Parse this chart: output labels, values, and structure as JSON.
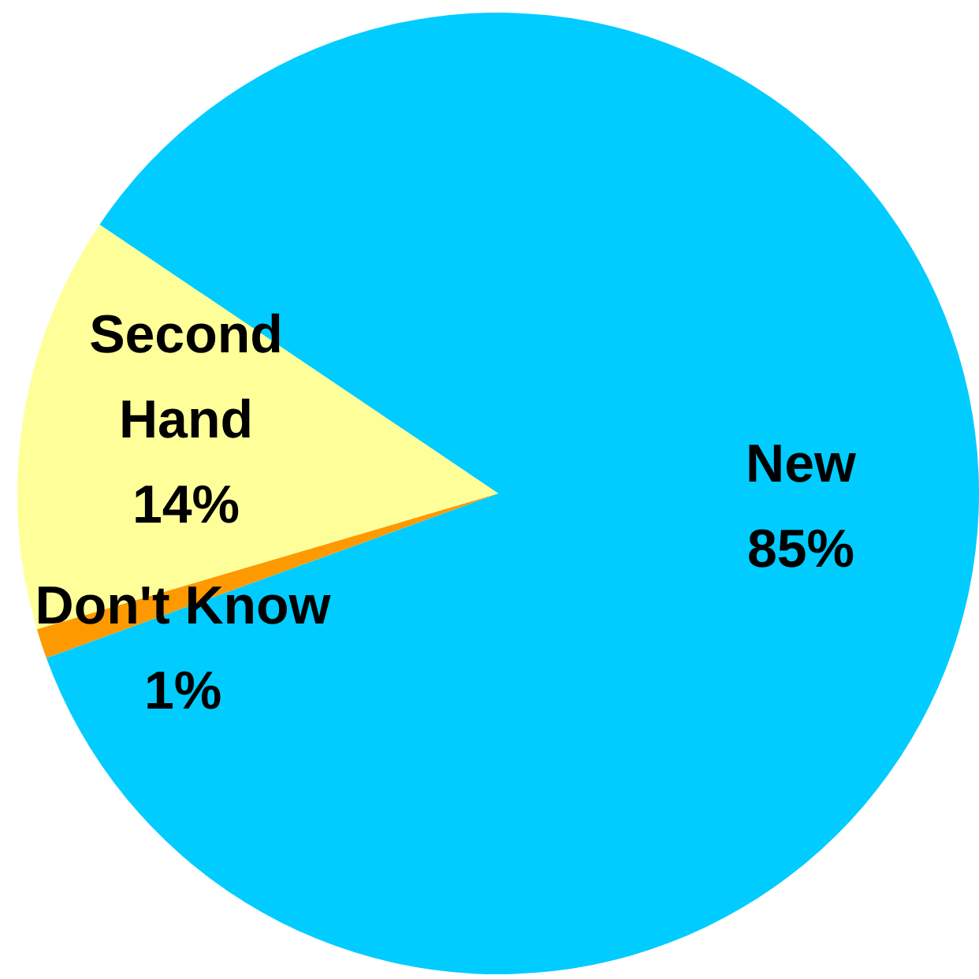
{
  "chart_data": {
    "type": "pie",
    "categories": [
      "New",
      "Don't Know",
      "Second Hand"
    ],
    "values": [
      85,
      1,
      14
    ],
    "colors": [
      "#00ccff",
      "#ff9900",
      "#ffff99"
    ],
    "value_labels": [
      "85%",
      "1%",
      "14%"
    ]
  }
}
